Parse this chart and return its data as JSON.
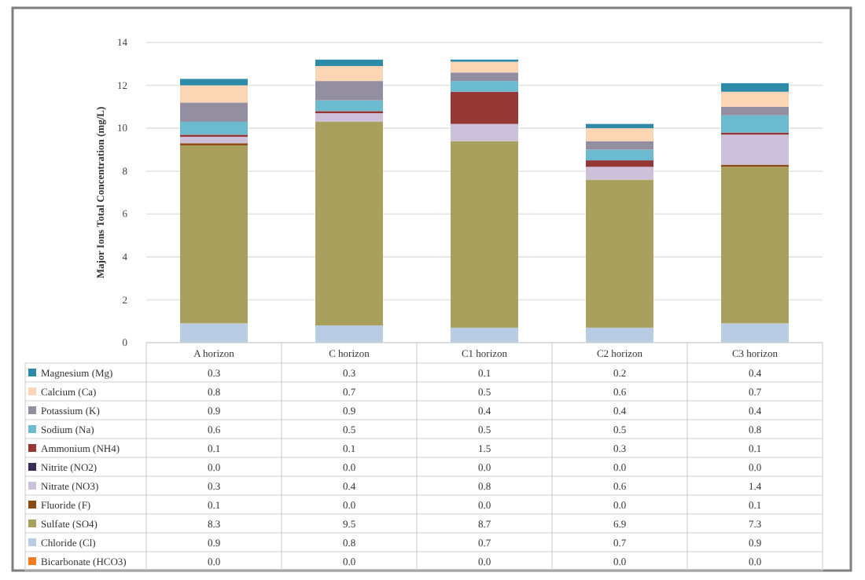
{
  "chart_data": {
    "type": "bar",
    "stacked": true,
    "ylabel": "Major Ions Total Concentration (mg/L)",
    "categories": [
      "A horizon",
      "C horizon",
      "C1 horizon",
      "C2 horizon",
      "C3 horizon"
    ],
    "ylim": [
      0,
      14
    ],
    "yticks": [
      0,
      2,
      4,
      6,
      8,
      10,
      12,
      14
    ],
    "grid": "y",
    "legend": "bottom",
    "series": [
      {
        "name": "Bicarbonate (HCO3)",
        "color": "#f57c20",
        "values": [
          0,
          0,
          0,
          0,
          0
        ],
        "value_labels": [
          "0.0",
          "0.0",
          "0.0",
          "0.0",
          "0.0"
        ]
      },
      {
        "name": "Chloride (Cl)",
        "color": "#b8cce4",
        "values": [
          0.9,
          0.8,
          0.7,
          0.7,
          0.9
        ],
        "value_labels": [
          "0.9",
          "0.8",
          "0.7",
          "0.7",
          "0.9"
        ]
      },
      {
        "name": "Sulfate (SO4)",
        "color": "#aaa05e",
        "values": [
          8.3,
          9.5,
          8.7,
          6.9,
          7.3
        ],
        "value_labels": [
          "8.3",
          "9.5",
          "8.7",
          "6.9",
          "7.3"
        ]
      },
      {
        "name": "Fluoride (F)",
        "color": "#8b4a13",
        "values": [
          0.1,
          0,
          0,
          0,
          0.1
        ],
        "value_labels": [
          "0.1",
          "0.0",
          "0.0",
          "0.0",
          "0.1"
        ]
      },
      {
        "name": "Nitrate (NO3)",
        "color": "#ccc0da",
        "values": [
          0.3,
          0.4,
          0.8,
          0.6,
          1.4
        ],
        "value_labels": [
          "0.3",
          "0.4",
          "0.8",
          "0.6",
          "1.4"
        ]
      },
      {
        "name": "Nitrite (NO2)",
        "color": "#3b2d5a",
        "values": [
          0,
          0,
          0,
          0,
          0
        ],
        "value_labels": [
          "0.0",
          "0.0",
          "0.0",
          "0.0",
          "0.0"
        ]
      },
      {
        "name": "Ammonium (NH4)",
        "color": "#953735",
        "values": [
          0.1,
          0.1,
          1.5,
          0.3,
          0.1
        ],
        "value_labels": [
          "0.1",
          "0.1",
          "1.5",
          "0.3",
          "0.1"
        ]
      },
      {
        "name": "Sodium (Na)",
        "color": "#6bbad0",
        "values": [
          0.6,
          0.5,
          0.5,
          0.5,
          0.8
        ],
        "value_labels": [
          "0.6",
          "0.5",
          "0.5",
          "0.5",
          "0.8"
        ]
      },
      {
        "name": "Potassium (K)",
        "color": "#948fa0",
        "values": [
          0.9,
          0.9,
          0.4,
          0.4,
          0.4
        ],
        "value_labels": [
          "0.9",
          "0.9",
          "0.4",
          "0.4",
          "0.4"
        ]
      },
      {
        "name": "Calcium (Ca)",
        "color": "#fcd5b4",
        "values": [
          0.8,
          0.7,
          0.5,
          0.6,
          0.7
        ],
        "value_labels": [
          "0.8",
          "0.7",
          "0.5",
          "0.6",
          "0.7"
        ]
      },
      {
        "name": "Magnesium (Mg)",
        "color": "#2e8ba8",
        "values": [
          0.3,
          0.3,
          0.1,
          0.2,
          0.4
        ],
        "value_labels": [
          "0.3",
          "0.3",
          "0.1",
          "0.2",
          "0.4"
        ]
      }
    ]
  }
}
